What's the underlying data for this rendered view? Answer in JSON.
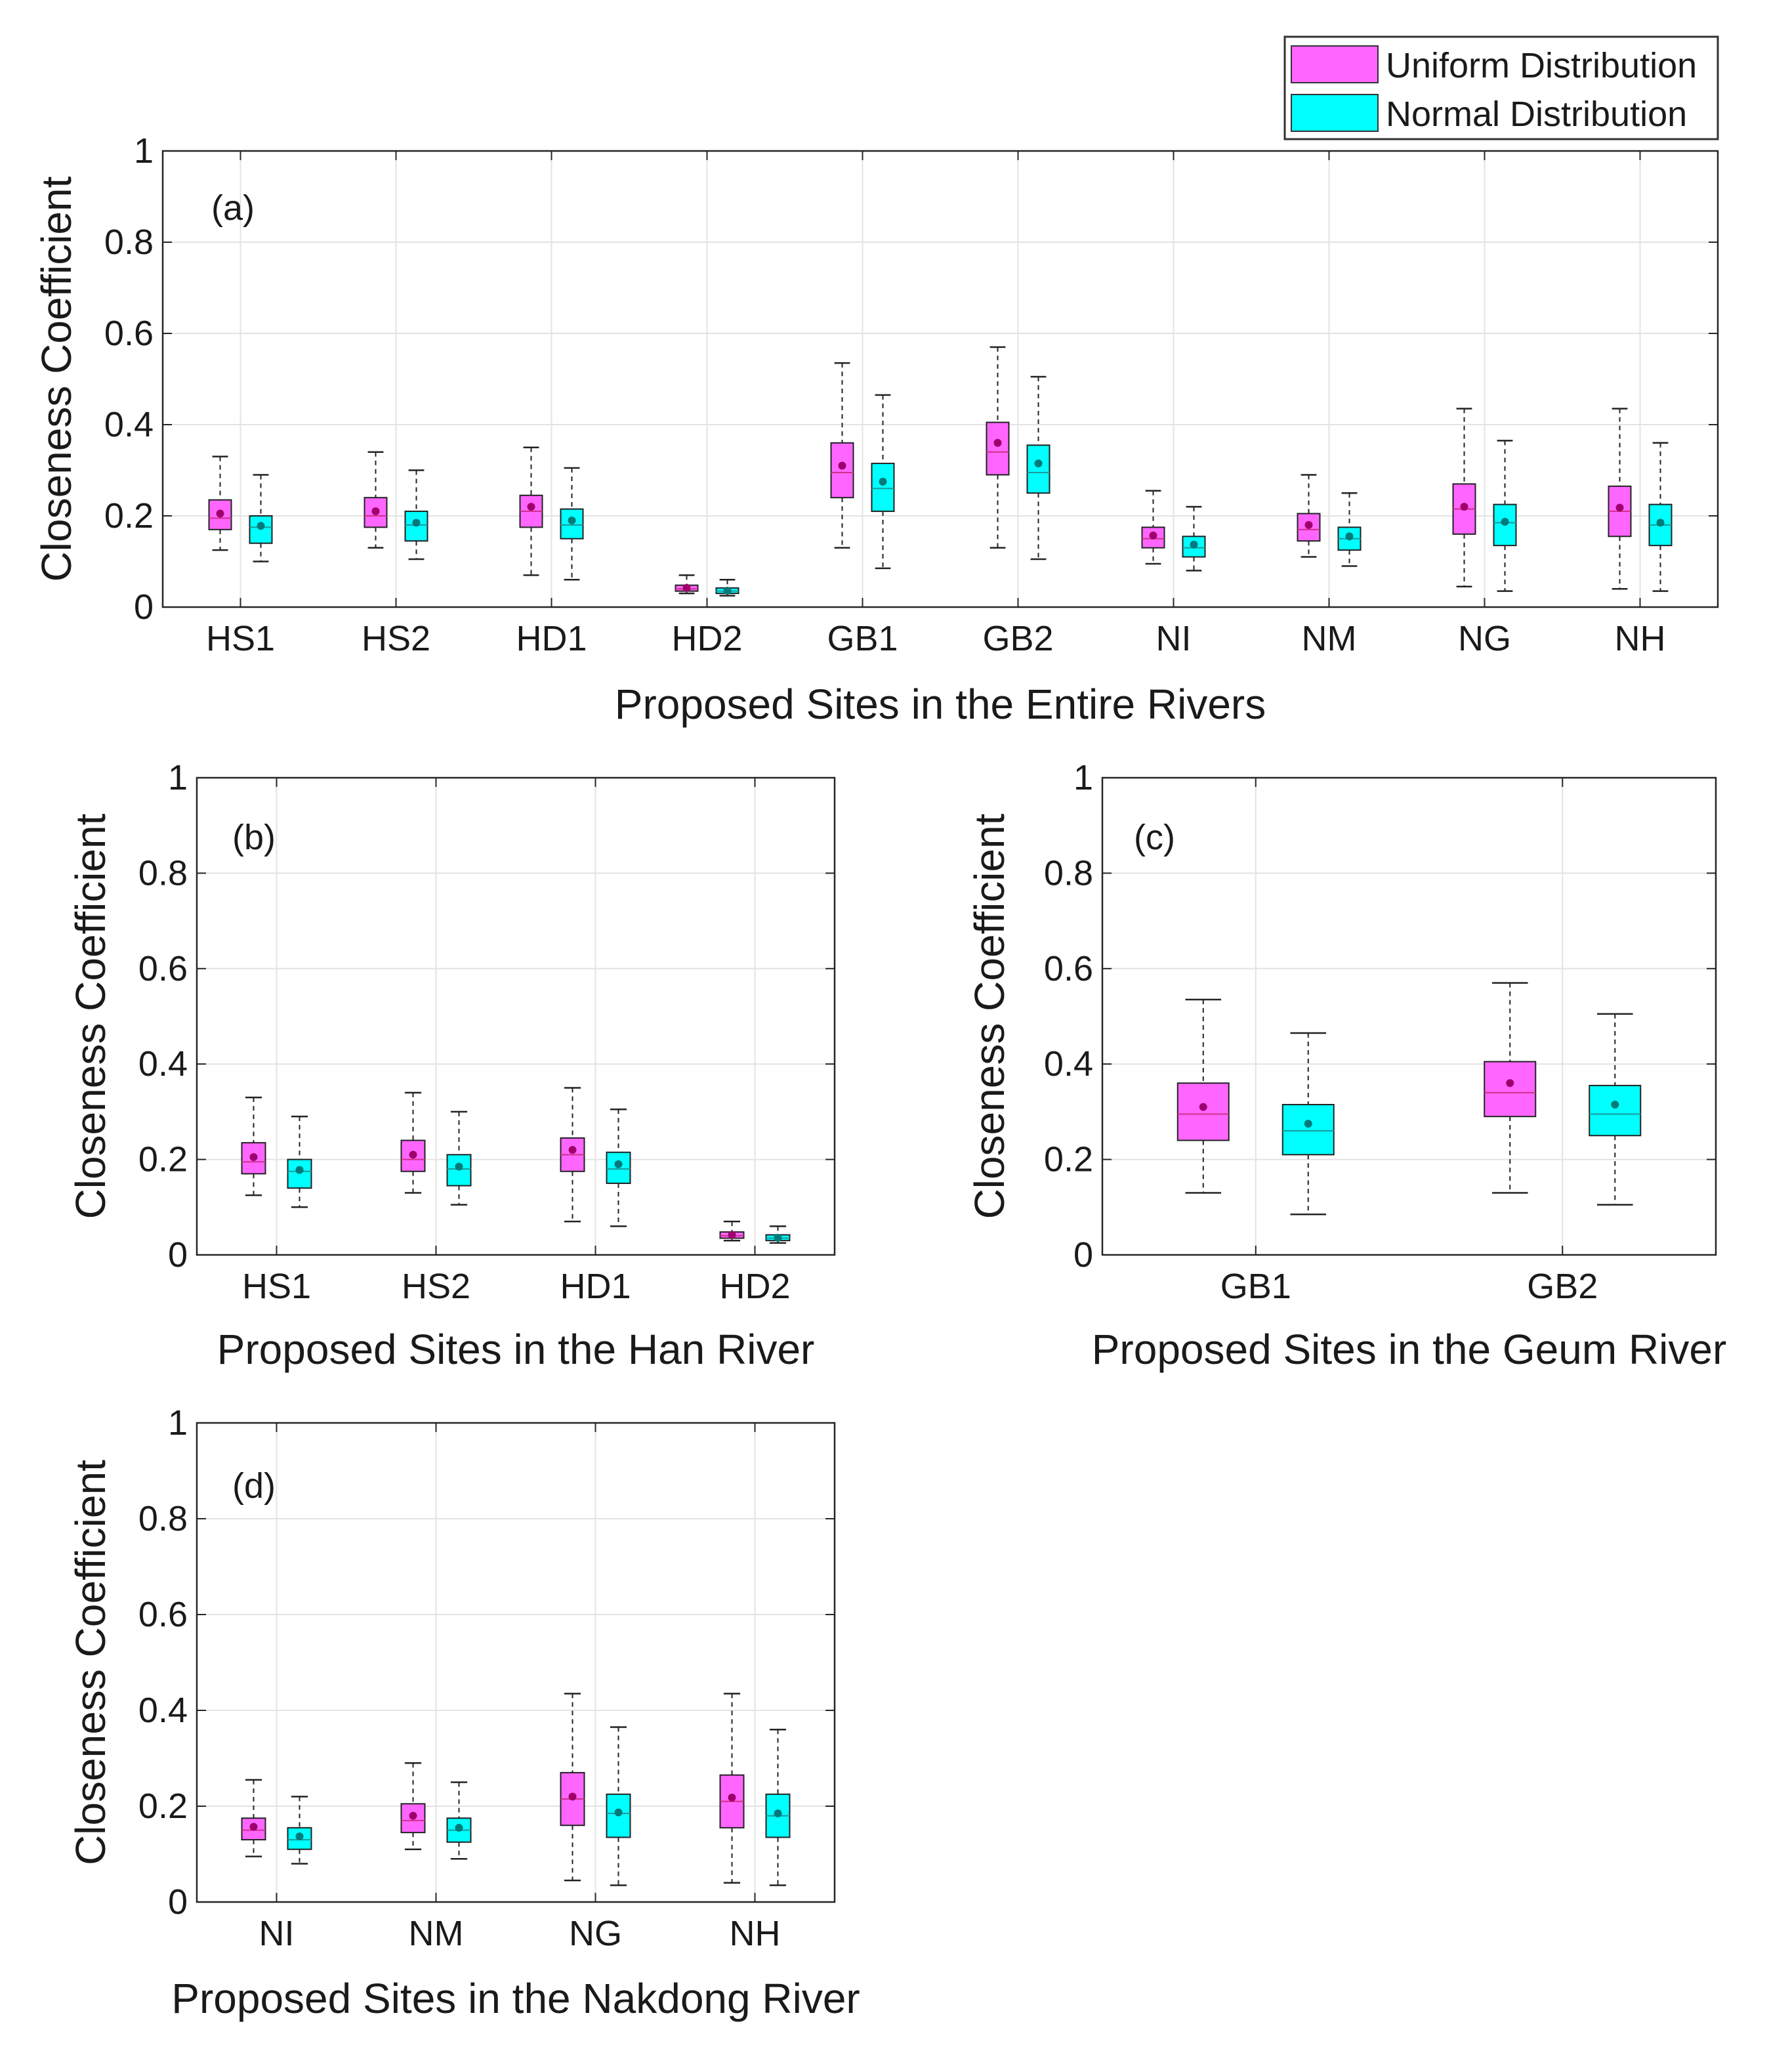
{
  "legend": {
    "items": [
      {
        "label": "Uniform Distribution",
        "color": "#ff66ff"
      },
      {
        "label": "Normal Distribution",
        "color": "#00ffff"
      }
    ]
  },
  "chart_data": [
    {
      "id": "a",
      "type": "box",
      "panel_label": "(a)",
      "xlabel": "Proposed Sites in the Entire Rivers",
      "ylabel": "Closeness Coefficient",
      "ylim": [
        0,
        1
      ],
      "yticks": [
        "0",
        "0.2",
        "0.4",
        "0.6",
        "0.8",
        "1"
      ],
      "grid": true,
      "categories": [
        "HS1",
        "HS2",
        "HD1",
        "HD2",
        "GB1",
        "GB2",
        "NI",
        "NM",
        "NG",
        "NH"
      ],
      "series": [
        {
          "name": "Uniform Distribution",
          "boxes": [
            {
              "min": 0.125,
              "q1": 0.17,
              "median": 0.195,
              "q3": 0.235,
              "max": 0.33,
              "mean": 0.205
            },
            {
              "min": 0.13,
              "q1": 0.175,
              "median": 0.2,
              "q3": 0.24,
              "max": 0.34,
              "mean": 0.21
            },
            {
              "min": 0.07,
              "q1": 0.175,
              "median": 0.21,
              "q3": 0.245,
              "max": 0.35,
              "mean": 0.22
            },
            {
              "min": 0.03,
              "q1": 0.035,
              "median": 0.04,
              "q3": 0.048,
              "max": 0.07,
              "mean": 0.042
            },
            {
              "min": 0.13,
              "q1": 0.24,
              "median": 0.295,
              "q3": 0.36,
              "max": 0.535,
              "mean": 0.31
            },
            {
              "min": 0.13,
              "q1": 0.29,
              "median": 0.34,
              "q3": 0.405,
              "max": 0.57,
              "mean": 0.36
            },
            {
              "min": 0.095,
              "q1": 0.13,
              "median": 0.15,
              "q3": 0.175,
              "max": 0.255,
              "mean": 0.157
            },
            {
              "min": 0.11,
              "q1": 0.145,
              "median": 0.17,
              "q3": 0.205,
              "max": 0.29,
              "mean": 0.18
            },
            {
              "min": 0.045,
              "q1": 0.16,
              "median": 0.215,
              "q3": 0.27,
              "max": 0.435,
              "mean": 0.22
            },
            {
              "min": 0.04,
              "q1": 0.155,
              "median": 0.21,
              "q3": 0.265,
              "max": 0.435,
              "mean": 0.218
            }
          ]
        },
        {
          "name": "Normal Distribution",
          "boxes": [
            {
              "min": 0.1,
              "q1": 0.14,
              "median": 0.175,
              "q3": 0.2,
              "max": 0.29,
              "mean": 0.178
            },
            {
              "min": 0.105,
              "q1": 0.145,
              "median": 0.18,
              "q3": 0.21,
              "max": 0.3,
              "mean": 0.185
            },
            {
              "min": 0.06,
              "q1": 0.15,
              "median": 0.18,
              "q3": 0.215,
              "max": 0.305,
              "mean": 0.19
            },
            {
              "min": 0.025,
              "q1": 0.03,
              "median": 0.035,
              "q3": 0.042,
              "max": 0.06,
              "mean": 0.036
            },
            {
              "min": 0.085,
              "q1": 0.21,
              "median": 0.26,
              "q3": 0.315,
              "max": 0.465,
              "mean": 0.275
            },
            {
              "min": 0.105,
              "q1": 0.25,
              "median": 0.295,
              "q3": 0.355,
              "max": 0.505,
              "mean": 0.315
            },
            {
              "min": 0.08,
              "q1": 0.11,
              "median": 0.13,
              "q3": 0.155,
              "max": 0.22,
              "mean": 0.137
            },
            {
              "min": 0.09,
              "q1": 0.125,
              "median": 0.15,
              "q3": 0.175,
              "max": 0.25,
              "mean": 0.155
            },
            {
              "min": 0.035,
              "q1": 0.135,
              "median": 0.185,
              "q3": 0.225,
              "max": 0.365,
              "mean": 0.187
            },
            {
              "min": 0.035,
              "q1": 0.135,
              "median": 0.18,
              "q3": 0.225,
              "max": 0.36,
              "mean": 0.185
            }
          ]
        }
      ]
    },
    {
      "id": "b",
      "type": "box",
      "panel_label": "(b)",
      "xlabel": "Proposed Sites in the Han River",
      "ylabel": "Closeness Coefficient",
      "ylim": [
        0,
        1
      ],
      "yticks": [
        "0",
        "0.2",
        "0.4",
        "0.6",
        "0.8",
        "1"
      ],
      "grid": true,
      "categories": [
        "HS1",
        "HS2",
        "HD1",
        "HD2"
      ],
      "series": [
        {
          "name": "Uniform Distribution",
          "boxes": [
            {
              "min": 0.125,
              "q1": 0.17,
              "median": 0.195,
              "q3": 0.235,
              "max": 0.33,
              "mean": 0.205
            },
            {
              "min": 0.13,
              "q1": 0.175,
              "median": 0.2,
              "q3": 0.24,
              "max": 0.34,
              "mean": 0.21
            },
            {
              "min": 0.07,
              "q1": 0.175,
              "median": 0.21,
              "q3": 0.245,
              "max": 0.35,
              "mean": 0.22
            },
            {
              "min": 0.03,
              "q1": 0.035,
              "median": 0.04,
              "q3": 0.048,
              "max": 0.07,
              "mean": 0.042
            }
          ]
        },
        {
          "name": "Normal Distribution",
          "boxes": [
            {
              "min": 0.1,
              "q1": 0.14,
              "median": 0.175,
              "q3": 0.2,
              "max": 0.29,
              "mean": 0.178
            },
            {
              "min": 0.105,
              "q1": 0.145,
              "median": 0.18,
              "q3": 0.21,
              "max": 0.3,
              "mean": 0.185
            },
            {
              "min": 0.06,
              "q1": 0.15,
              "median": 0.18,
              "q3": 0.215,
              "max": 0.305,
              "mean": 0.19
            },
            {
              "min": 0.025,
              "q1": 0.03,
              "median": 0.035,
              "q3": 0.042,
              "max": 0.06,
              "mean": 0.036
            }
          ]
        }
      ]
    },
    {
      "id": "c",
      "type": "box",
      "panel_label": "(c)",
      "xlabel": "Proposed Sites in the Geum River",
      "ylabel": "Closeness Coefficient",
      "ylim": [
        0,
        1
      ],
      "yticks": [
        "0",
        "0.2",
        "0.4",
        "0.6",
        "0.8",
        "1"
      ],
      "grid": true,
      "categories": [
        "GB1",
        "GB2"
      ],
      "series": [
        {
          "name": "Uniform Distribution",
          "boxes": [
            {
              "min": 0.13,
              "q1": 0.24,
              "median": 0.295,
              "q3": 0.36,
              "max": 0.535,
              "mean": 0.31
            },
            {
              "min": 0.13,
              "q1": 0.29,
              "median": 0.34,
              "q3": 0.405,
              "max": 0.57,
              "mean": 0.36
            }
          ]
        },
        {
          "name": "Normal Distribution",
          "boxes": [
            {
              "min": 0.085,
              "q1": 0.21,
              "median": 0.26,
              "q3": 0.315,
              "max": 0.465,
              "mean": 0.275
            },
            {
              "min": 0.105,
              "q1": 0.25,
              "median": 0.295,
              "q3": 0.355,
              "max": 0.505,
              "mean": 0.315
            }
          ]
        }
      ]
    },
    {
      "id": "d",
      "type": "box",
      "panel_label": "(d)",
      "xlabel": "Proposed Sites in the Nakdong River",
      "ylabel": "Closeness Coefficient",
      "ylim": [
        0,
        1
      ],
      "yticks": [
        "0",
        "0.2",
        "0.4",
        "0.6",
        "0.8",
        "1"
      ],
      "grid": true,
      "categories": [
        "NI",
        "NM",
        "NG",
        "NH"
      ],
      "series": [
        {
          "name": "Uniform Distribution",
          "boxes": [
            {
              "min": 0.095,
              "q1": 0.13,
              "median": 0.15,
              "q3": 0.175,
              "max": 0.255,
              "mean": 0.157
            },
            {
              "min": 0.11,
              "q1": 0.145,
              "median": 0.17,
              "q3": 0.205,
              "max": 0.29,
              "mean": 0.18
            },
            {
              "min": 0.045,
              "q1": 0.16,
              "median": 0.215,
              "q3": 0.27,
              "max": 0.435,
              "mean": 0.22
            },
            {
              "min": 0.04,
              "q1": 0.155,
              "median": 0.21,
              "q3": 0.265,
              "max": 0.435,
              "mean": 0.218
            }
          ]
        },
        {
          "name": "Normal Distribution",
          "boxes": [
            {
              "min": 0.08,
              "q1": 0.11,
              "median": 0.13,
              "q3": 0.155,
              "max": 0.22,
              "mean": 0.137
            },
            {
              "min": 0.09,
              "q1": 0.125,
              "median": 0.15,
              "q3": 0.175,
              "max": 0.25,
              "mean": 0.155
            },
            {
              "min": 0.035,
              "q1": 0.135,
              "median": 0.185,
              "q3": 0.225,
              "max": 0.365,
              "mean": 0.187
            },
            {
              "min": 0.035,
              "q1": 0.135,
              "median": 0.18,
              "q3": 0.225,
              "max": 0.36,
              "mean": 0.185
            }
          ]
        }
      ]
    }
  ]
}
